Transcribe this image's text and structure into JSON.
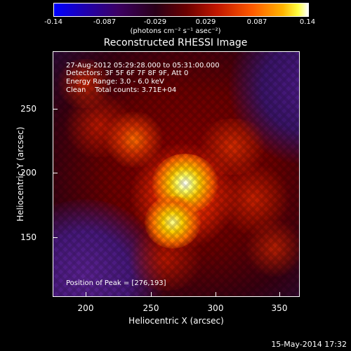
{
  "colorbar": {
    "ticks": [
      "-0.14",
      "-0.087",
      "-0.029",
      "0.029",
      "0.087",
      "0.14"
    ],
    "units": "(photons cm⁻² s⁻¹ asec⁻²)"
  },
  "title": "Reconstructed RHESSI Image",
  "info": {
    "time_range": "27-Aug-2012 05:29:28.000 to 05:31:00.000",
    "detectors": "Detectors: 3F 5F 6F 7F 8F 9F, Att 0",
    "energy": "Energy Range: 3.0 - 6.0 keV",
    "clean": "Clean    Total counts: 3.71E+04",
    "peak": "Position of Peak = [276,193]"
  },
  "axes": {
    "xlabel": "Heliocentric X (arcsec)",
    "ylabel": "Heliocentric Y (arcsec)",
    "xticks": [
      "200",
      "250",
      "300",
      "350"
    ],
    "yticks": [
      "250",
      "200",
      "150"
    ]
  },
  "footer": {
    "date": "15-May-2014 17:32"
  }
}
